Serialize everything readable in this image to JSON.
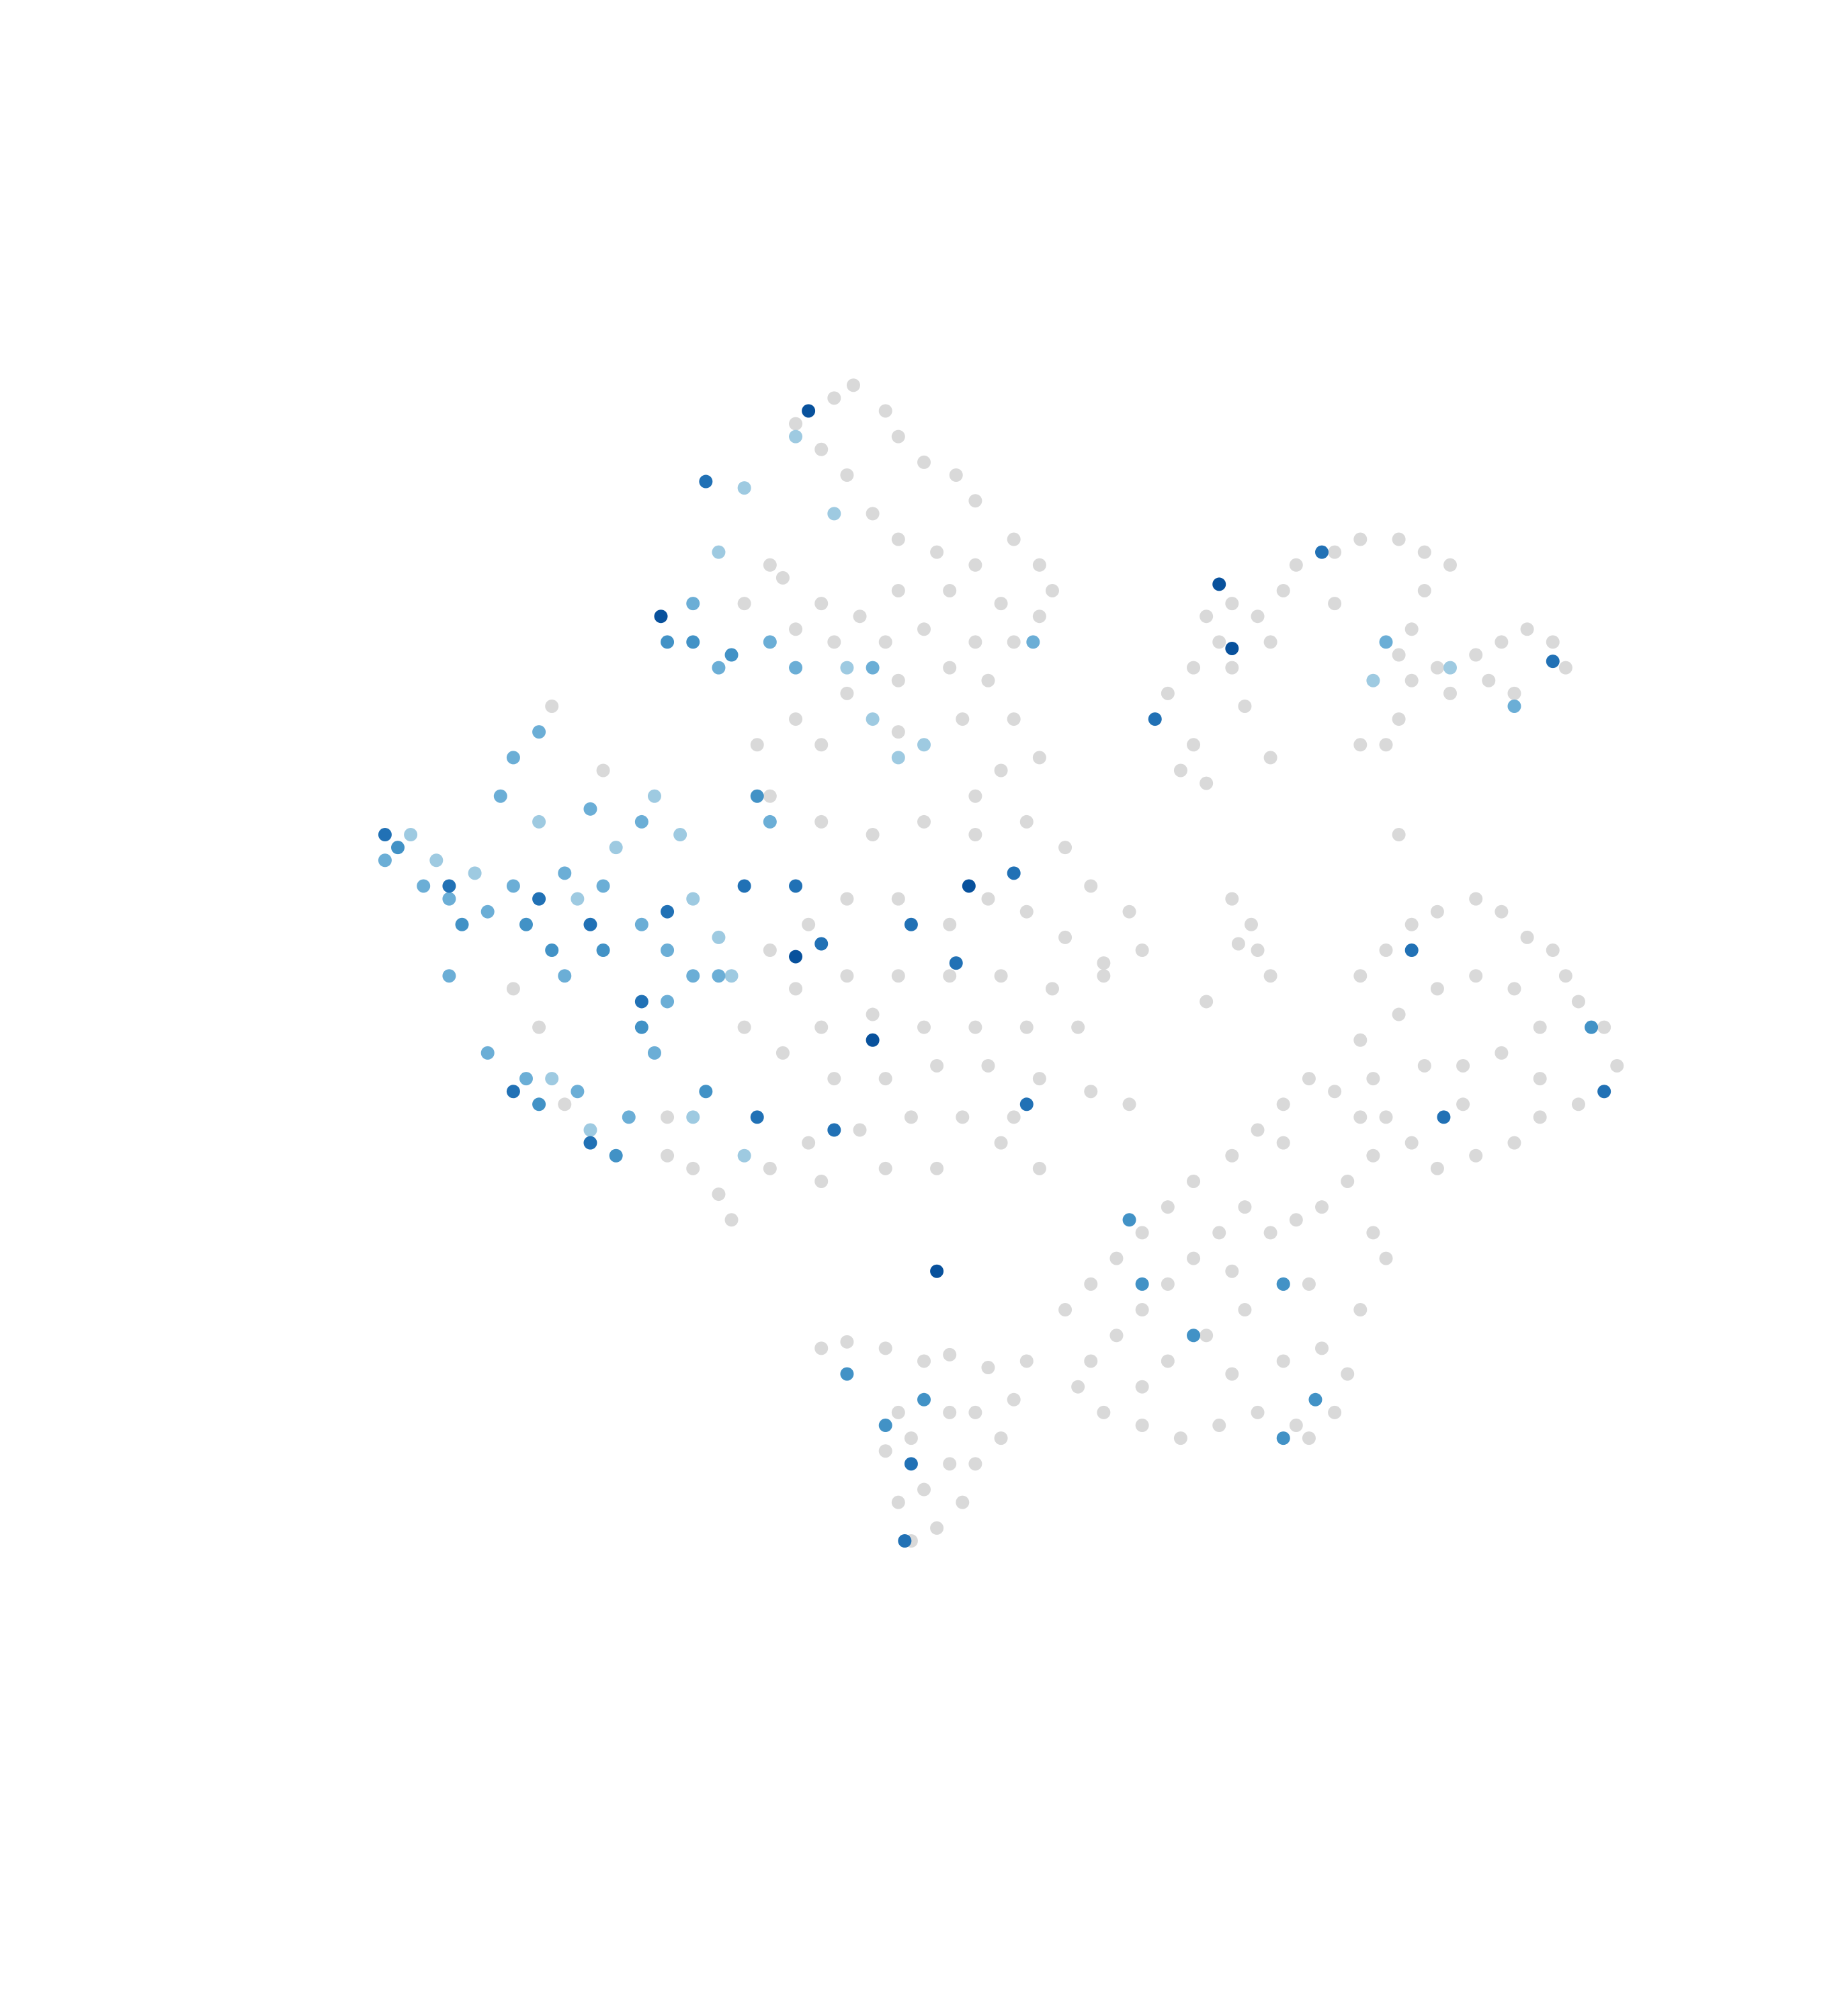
{
  "chart_data": {
    "type": "scatter",
    "xlim": [
      0,
      1440
    ],
    "ylim": [
      1570,
      0
    ],
    "marker_radius": 10,
    "series": [
      {
        "color": "#d9d9d9",
        "x": [
          620,
          650,
          665,
          690,
          640,
          660,
          700,
          720,
          745,
          760,
          680,
          700,
          730,
          760,
          790,
          810,
          820,
          780,
          740,
          700,
          670,
          640,
          610,
          600,
          580,
          620,
          650,
          690,
          720,
          760,
          790,
          810,
          770,
          740,
          700,
          660,
          620,
          590,
          640,
          700,
          750,
          790,
          810,
          780,
          760,
          600,
          640,
          680,
          720,
          760,
          800,
          830,
          850,
          880,
          890,
          860,
          830,
          800,
          770,
          740,
          700,
          660,
          630,
          600,
          620,
          660,
          700,
          740,
          780,
          820,
          860,
          840,
          800,
          760,
          720,
          680,
          640,
          610,
          650,
          690,
          730,
          770,
          810,
          850,
          880,
          790,
          750,
          710,
          670,
          630,
          600,
          640,
          690,
          730,
          780,
          810,
          560,
          540,
          570,
          520,
          900,
          920,
          930,
          910,
          930,
          950,
          940,
          960,
          980,
          1000,
          1010,
          1040,
          1060,
          1090,
          1110,
          1130,
          1110,
          1100,
          1090,
          1100,
          1120,
          1150,
          1170,
          1190,
          1210,
          1220,
          1180,
          1160,
          1130,
          1090,
          1080,
          960,
          970,
          940,
          990,
          1040,
          1060,
          1090,
          990,
          1060,
          1080,
          1100,
          1120,
          1150,
          1170,
          1190,
          1210,
          1220,
          1230,
          1250,
          1260,
          1250,
          1230,
          1200,
          1180,
          1150,
          1120,
          1100,
          1080,
          1070,
          1060,
          1090,
          1120,
          1150,
          1180,
          1200,
          1170,
          1140,
          1110,
          1140,
          1200,
          830,
          850,
          870,
          890,
          910,
          930,
          960,
          980,
          1000,
          1020,
          1040,
          1060,
          1070,
          1050,
          1030,
          1010,
          990,
          970,
          950,
          930,
          910,
          890,
          870,
          850,
          840,
          860,
          890,
          920,
          950,
          980,
          1010,
          1040,
          1050,
          1030,
          1060,
          1080,
          1070,
          1000,
          970,
          940,
          910,
          960,
          1000,
          1020,
          1000,
          960,
          890,
          1020,
          640,
          660,
          690,
          720,
          740,
          770,
          800,
          790,
          780,
          760,
          750,
          730,
          710,
          700,
          720,
          740,
          710,
          700,
          690,
          740,
          760,
          960,
          975,
          980,
          965,
          990,
          940,
          430,
          470,
          400,
          420,
          440,
          520,
          580
        ],
        "y": [
          330,
          310,
          300,
          320,
          350,
          370,
          340,
          360,
          370,
          390,
          400,
          420,
          430,
          440,
          420,
          440,
          460,
          470,
          460,
          460,
          480,
          470,
          450,
          440,
          470,
          490,
          500,
          500,
          490,
          500,
          500,
          480,
          530,
          520,
          530,
          540,
          560,
          580,
          580,
          570,
          560,
          560,
          590,
          600,
          620,
          620,
          640,
          650,
          640,
          650,
          640,
          660,
          690,
          710,
          740,
          750,
          730,
          710,
          700,
          720,
          700,
          700,
          720,
          740,
          770,
          760,
          760,
          760,
          760,
          770,
          760,
          800,
          800,
          800,
          800,
          790,
          800,
          820,
          840,
          840,
          830,
          830,
          840,
          850,
          860,
          870,
          870,
          870,
          880,
          890,
          910,
          920,
          910,
          910,
          890,
          910,
          930,
          910,
          950,
          900,
          560,
          600,
          580,
          540,
          520,
          500,
          480,
          470,
          480,
          460,
          440,
          430,
          420,
          420,
          430,
          440,
          460,
          490,
          510,
          530,
          520,
          510,
          500,
          490,
          500,
          520,
          540,
          530,
          540,
          560,
          580,
          520,
          550,
          610,
          500,
          470,
          580,
          650,
          590,
          760,
          740,
          720,
          710,
          700,
          710,
          730,
          740,
          760,
          780,
          800,
          830,
          850,
          860,
          870,
          890,
          900,
          910,
          890,
          870,
          840,
          810,
          790,
          770,
          760,
          770,
          800,
          820,
          830,
          830,
          860,
          840,
          1020,
          1000,
          980,
          960,
          940,
          920,
          900,
          880,
          860,
          840,
          850,
          870,
          900,
          920,
          940,
          950,
          960,
          940,
          960,
          980,
          1000,
          1020,
          1040,
          1060,
          1080,
          1100,
          1110,
          1120,
          1110,
          1100,
          1110,
          1100,
          1070,
          1050,
          1020,
          980,
          960,
          1000,
          1020,
          1040,
          1060,
          1070,
          1060,
          1000,
          890,
          990,
          1080,
          1120,
          1050,
          1045,
          1050,
          1060,
          1055,
          1065,
          1060,
          1090,
          1120,
          1140,
          1170,
          1190,
          1200,
          1170,
          1160,
          1140,
          1120,
          1100,
          1130,
          1100,
          1100,
          700,
          720,
          740,
          735,
          760,
          780,
          550,
          600,
          770,
          800,
          860,
          870,
          800
        ]
      },
      {
        "color": "#9ecae1",
        "x": [
          320,
          340,
          370,
          420,
          450,
          480,
          510,
          530,
          540,
          560,
          570,
          430,
          460,
          540,
          580,
          680,
          700,
          720,
          660,
          560,
          580,
          650,
          620,
          1070,
          1130
        ],
        "y": [
          650,
          670,
          680,
          640,
          700,
          660,
          620,
          650,
          700,
          730,
          760,
          840,
          880,
          870,
          900,
          560,
          590,
          580,
          520,
          430,
          380,
          400,
          340,
          530,
          520
        ]
      },
      {
        "color": "#6baed6",
        "x": [
          300,
          330,
          350,
          380,
          400,
          440,
          470,
          500,
          520,
          540,
          400,
          420,
          390,
          460,
          500,
          380,
          410,
          450,
          490,
          510,
          520,
          560,
          350,
          440,
          600,
          620,
          560,
          540,
          600,
          805,
          680,
          1180,
          1080
        ],
        "y": [
          670,
          690,
          700,
          710,
          690,
          680,
          690,
          720,
          740,
          760,
          590,
          570,
          620,
          630,
          640,
          820,
          840,
          850,
          870,
          820,
          780,
          760,
          760,
          760,
          640,
          520,
          520,
          470,
          500,
          500,
          520,
          550,
          500
        ]
      },
      {
        "color": "#4292c6",
        "x": [
          310,
          360,
          410,
          430,
          470,
          500,
          420,
          480,
          550,
          540,
          570,
          520,
          590,
          660,
          690,
          720,
          930,
          1000,
          1025,
          1000,
          1240,
          880,
          890
        ],
        "y": [
          660,
          720,
          720,
          740,
          740,
          800,
          860,
          900,
          850,
          500,
          510,
          500,
          620,
          1070,
          1110,
          1090,
          1040,
          1000,
          1090,
          1120,
          800,
          950,
          1000
        ]
      },
      {
        "color": "#2171b5",
        "x": [
          300,
          350,
          420,
          460,
          520,
          500,
          400,
          460,
          590,
          580,
          550,
          620,
          640,
          710,
          790,
          745,
          800,
          650,
          1030,
          1210,
          1250,
          1100,
          1125,
          900,
          710,
          705
        ],
        "y": [
          650,
          690,
          700,
          720,
          710,
          780,
          850,
          890,
          870,
          690,
          375,
          690,
          735,
          720,
          680,
          750,
          860,
          880,
          430,
          515,
          850,
          740,
          870,
          560,
          1140,
          1200
        ]
      },
      {
        "color": "#08519c",
        "x": [
          630,
          515,
          620,
          680,
          755,
          950,
          960,
          730
        ],
        "y": [
          320,
          480,
          745,
          810,
          690,
          455,
          505,
          990
        ]
      }
    ]
  }
}
